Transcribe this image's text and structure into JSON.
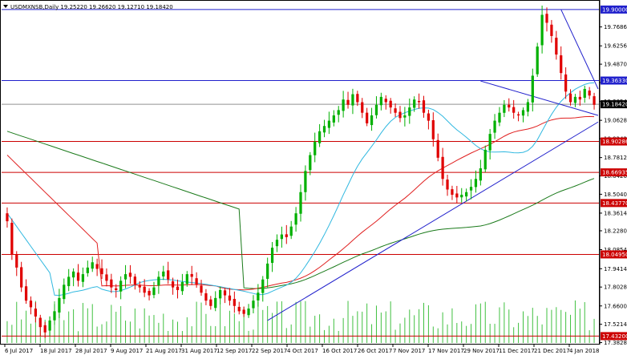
{
  "header": {
    "symbol_line": "USDMXNSB,Daily  19.25220 19.26620 19.12710 19.18420",
    "menu_icon": "triangle-down-icon"
  },
  "colors": {
    "background": "#ffffff",
    "bull": "#00b000",
    "bear": "#e00000",
    "h_red_line": "#cc0000",
    "h_blue_line": "#2020cc",
    "trend_blue": "#2020cc",
    "ma_cyan": "#30b8e0",
    "ma_red": "#e02020",
    "ma_green": "#1a7a1a",
    "volume": "#40c040",
    "price_badge": "#000000"
  },
  "chart_data": {
    "type": "candlestick",
    "symbol": "USDMXNSB",
    "timeframe": "Daily",
    "ohlc_header": {
      "open": 19.2522,
      "high": 19.2662,
      "low": 19.1271,
      "close": 19.1842
    },
    "ylim": [
      17.38,
      19.96
    ],
    "y_ticks": [
      "19.76860",
      "19.62560",
      "19.48700",
      "19.34840",
      "19.20540",
      "19.06280",
      "18.92420",
      "18.78120",
      "18.64260",
      "18.50400",
      "18.36140",
      "18.22800",
      "18.08540",
      "17.94140",
      "17.80280",
      "17.66000",
      "17.52140",
      "17.38280"
    ],
    "x_labels": [
      "6 Jul 2017",
      "18 Jul 2017",
      "28 Jul 2017",
      "9 Aug 2017",
      "21 Aug 2017",
      "31 Aug 2017",
      "12 Sep 2017",
      "22 Sep 2017",
      "4 Oct 2017",
      "16 Oct 2017",
      "26 Oct 2017",
      "7 Nov 2017",
      "17 Nov 2017",
      "29 Nov 2017",
      "11 Dec 2017",
      "21 Dec 2017",
      "4 Jan 2018"
    ],
    "horizontal_levels": [
      {
        "value": 19.9,
        "label": "19.90000",
        "color": "blue"
      },
      {
        "value": 19.3633,
        "label": "19.36330",
        "color": "blue"
      },
      {
        "value": 19.1842,
        "label": "19.18420",
        "color": "gray",
        "current": true
      },
      {
        "value": 18.90286,
        "label": "18.90286",
        "color": "red"
      },
      {
        "value": 18.66935,
        "label": "18.66935",
        "color": "red"
      },
      {
        "value": 18.4377,
        "label": "18.43770",
        "color": "red"
      },
      {
        "value": 18.0495,
        "label": "18.04950",
        "color": "red"
      },
      {
        "value": 17.432,
        "label": "17.43200",
        "color": "red"
      }
    ],
    "closes": [
      18.3,
      18.05,
      17.95,
      17.8,
      17.7,
      17.65,
      17.58,
      17.5,
      17.46,
      17.55,
      17.62,
      17.72,
      17.82,
      17.88,
      17.92,
      17.85,
      17.9,
      17.95,
      17.99,
      17.94,
      17.9,
      17.85,
      17.8,
      17.78,
      17.85,
      17.9,
      17.88,
      17.82,
      17.8,
      17.76,
      17.74,
      17.8,
      17.88,
      17.92,
      17.86,
      17.8,
      17.78,
      17.84,
      17.9,
      17.88,
      17.82,
      17.76,
      17.7,
      17.66,
      17.72,
      17.78,
      17.74,
      17.7,
      17.66,
      17.62,
      17.6,
      17.64,
      17.7,
      17.76,
      17.86,
      17.98,
      18.1,
      18.16,
      18.2,
      18.18,
      18.26,
      18.36,
      18.52,
      18.68,
      18.8,
      18.9,
      18.98,
      19.02,
      19.06,
      19.1,
      19.14,
      19.22,
      19.18,
      19.26,
      19.2,
      19.12,
      19.04,
      19.1,
      19.18,
      19.24,
      19.2,
      19.16,
      19.12,
      19.08,
      19.1,
      19.16,
      19.22,
      19.2,
      19.12,
      19.06,
      18.92,
      18.78,
      18.62,
      18.54,
      18.5,
      18.48,
      18.5,
      18.52,
      18.56,
      18.62,
      18.7,
      18.84,
      18.96,
      19.06,
      19.12,
      19.18,
      19.16,
      19.12,
      19.1,
      19.14,
      19.2,
      19.4,
      19.62,
      19.86,
      19.8,
      19.7,
      19.56,
      19.42,
      19.28,
      19.2,
      19.24,
      19.22,
      19.3,
      19.25,
      19.18
    ]
  }
}
